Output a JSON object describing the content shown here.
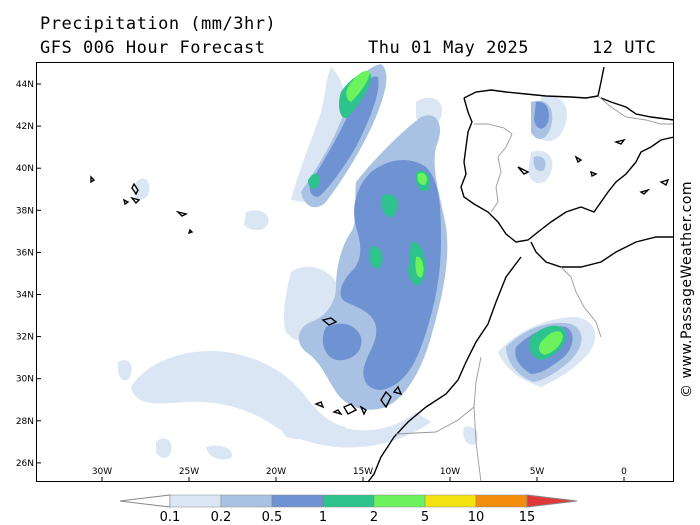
{
  "header": {
    "title": "Precipitation (mm/3hr)",
    "model": "GFS 006 Hour Forecast",
    "date": "Thu 01 May 2025",
    "time": "12 UTC"
  },
  "map": {
    "lat_labels": [
      "44N",
      "42N",
      "40N",
      "38N",
      "36N",
      "34N",
      "32N",
      "30N",
      "28N",
      "26N"
    ],
    "lon_labels": [
      "30W",
      "25W",
      "20W",
      "15W",
      "10W",
      "5W",
      "0"
    ],
    "land_border_color": "#000000",
    "political_border_color": "#999999"
  },
  "legend": {
    "labels": [
      "0.1",
      "0.2",
      "0.5",
      "1",
      "2",
      "5",
      "10",
      "15"
    ],
    "colors": [
      "#ffffff",
      "#dbe6f4",
      "#a9c2e3",
      "#6f92d2",
      "#2ec28c",
      "#6cf25c",
      "#f4e20e",
      "#f48c0c",
      "#e03838"
    ]
  },
  "copyright": "© www.PassageWeather.com"
}
